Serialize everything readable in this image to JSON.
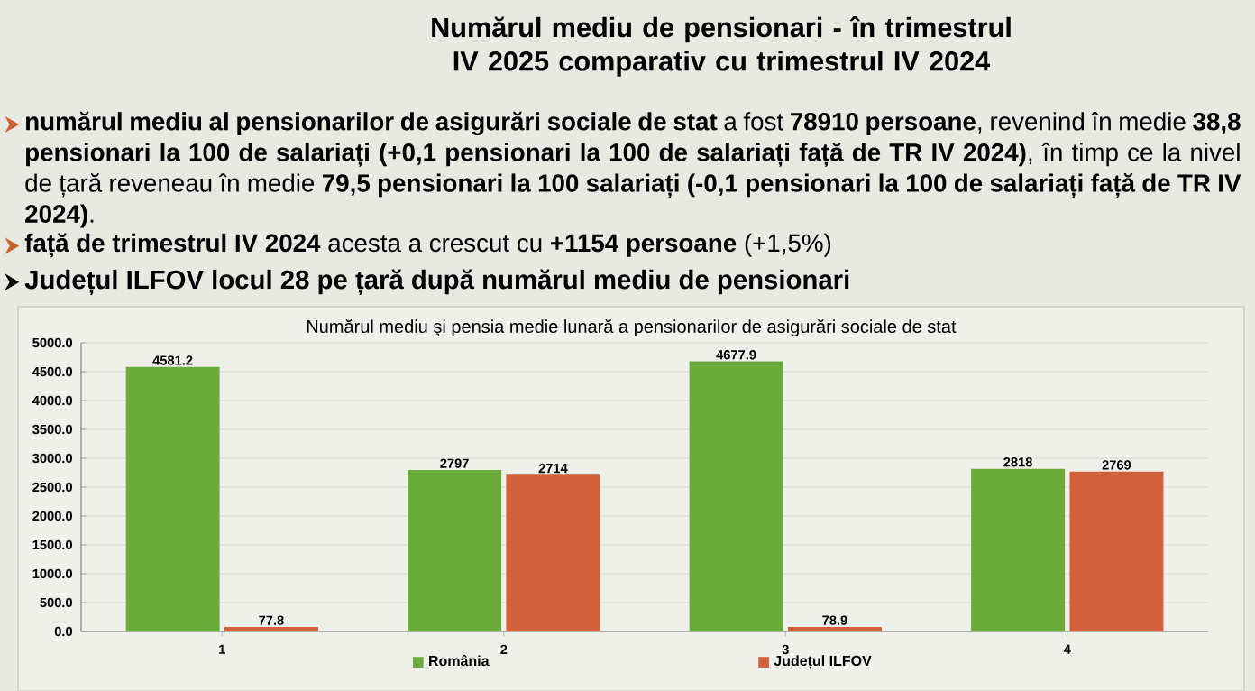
{
  "chart_data": {
    "type": "bar",
    "title": "Numărul mediu de pensionari - în trimestrul IV 2025 comparativ cu trimestrul IV 2024",
    "subtitle": "Numărul mediu şi pensia medie lunară a pensionarilor de asigurări sociale de stat",
    "annotations": [
      "**numărul mediu al pensionarilor de asigurări sociale de stat** a fost **78910 persoane**, revenind în medie **38,8 pensionari la 100 de salariați (+0,1 pensionari la 100 de salariați față de TR IV 2024)**, în timp ce la nivel de țară reveneau în medie **79,5 pensionari la 100 salariați (-0,1 pensionari la 100 de salariați față de TR IV 2024)**.",
      "**față de trimestrul IV 2024** acesta a crescut cu **+1154 persoane** (+1,5%)",
      "Județul ILFOV locul 28 pe țară după numărul mediu de pensionari"
    ],
    "categories": [
      "1",
      "2",
      "3",
      "4"
    ],
    "series": [
      {
        "name": "România",
        "color": "#6aab3c",
        "values": [
          4581.2,
          2797,
          4677.9,
          2818
        ]
      },
      {
        "name": "Județul ILFOV",
        "color": "#d2603a",
        "values": [
          77.8,
          2714,
          78.9,
          2769
        ]
      }
    ],
    "ylim": [
      0,
      5000
    ],
    "yticks": [
      {
        "value": 0,
        "label": "0.0"
      },
      {
        "value": 500,
        "label": "500.0"
      },
      {
        "value": 1000,
        "label": "1000.0"
      },
      {
        "value": 1500,
        "label": "1500.0"
      },
      {
        "value": 2000,
        "label": "2000.0"
      },
      {
        "value": 2500,
        "label": "2500.0"
      },
      {
        "value": 3000,
        "label": "3000.0"
      },
      {
        "value": 3500,
        "label": "3500.0"
      },
      {
        "value": 4000,
        "label": "4000.0"
      },
      {
        "value": 4500,
        "label": "4500.0"
      },
      {
        "value": 5000,
        "label": "5000.0"
      }
    ],
    "grid": "y",
    "data_labels": true,
    "legend": "bottom"
  }
}
